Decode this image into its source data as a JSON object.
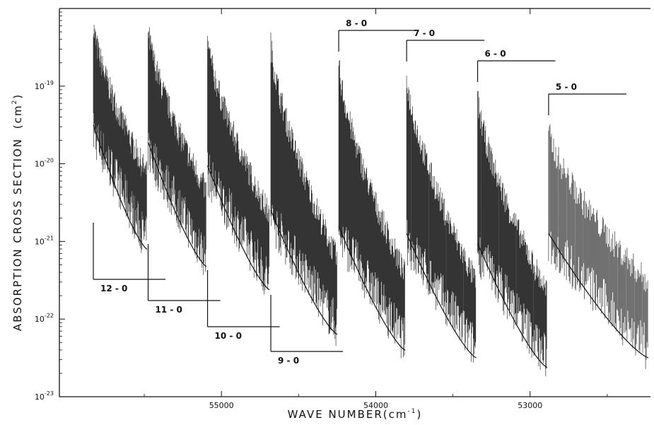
{
  "chart_data": {
    "type": "line",
    "title": "",
    "xlabel": "WAVE  NUMBER",
    "xlabel_unit_base": "(cm",
    "xlabel_unit_exp": "-1",
    "xlabel_unit_close": ")",
    "ylabel": "ABSORPTION CROSS SECTION",
    "ylabel_unit_base": "(cm",
    "ylabel_unit_exp": "2",
    "ylabel_unit_close": ")",
    "xlim": [
      52220,
      56050
    ],
    "x_reversed": true,
    "ylim": [
      1e-23,
      1e-18
    ],
    "y_log": true,
    "x_ticks": [
      {
        "value": 55000,
        "label": "55000"
      },
      {
        "value": 54000,
        "label": "54000"
      },
      {
        "value": 53000,
        "label": "53000"
      }
    ],
    "y_ticks": [
      {
        "value": 1e-19,
        "base": "10",
        "exp": "-19"
      },
      {
        "value": 1e-20,
        "base": "10",
        "exp": "-20"
      },
      {
        "value": 1e-21,
        "base": "10",
        "exp": "-21"
      },
      {
        "value": 1e-22,
        "base": "10",
        "exp": "-22"
      },
      {
        "value": 1e-23,
        "base": "10",
        "exp": "-23"
      }
    ],
    "bands": [
      {
        "label": "12 - 0",
        "origin": 55830,
        "peak_xsec": 7e-19,
        "trough_xsec": 5e-22
      },
      {
        "label": "11 - 0",
        "origin": 55475,
        "peak_xsec": 6e-19,
        "trough_xsec": 3e-22
      },
      {
        "label": "10 - 0",
        "origin": 55090,
        "peak_xsec": 4.5e-19,
        "trough_xsec": 1.5e-22
      },
      {
        "label": "9 - 0",
        "origin": 54680,
        "peak_xsec": 4e-19,
        "trough_xsec": 4e-23
      },
      {
        "label": "8 - 0",
        "origin": 54240,
        "peak_xsec": 2.2e-19,
        "trough_xsec": 2.5e-23
      },
      {
        "label": "7 - 0",
        "origin": 53800,
        "peak_xsec": 1.5e-19,
        "trough_xsec": 2e-23
      },
      {
        "label": "6 - 0",
        "origin": 53340,
        "peak_xsec": 8e-20,
        "trough_xsec": 1.5e-23
      },
      {
        "label": "5 - 0",
        "origin": 52880,
        "peak_xsec": 3e-20,
        "trough_xsec": 2e-23
      }
    ],
    "band_label_placement": {
      "12 - 0": "below",
      "11 - 0": "below",
      "10 - 0": "below",
      "9 - 0": "below",
      "8 - 0": "above",
      "7 - 0": "above",
      "6 - 0": "above",
      "5 - 0": "above"
    },
    "grid": false,
    "legend": "none",
    "line_color": "#111111"
  }
}
